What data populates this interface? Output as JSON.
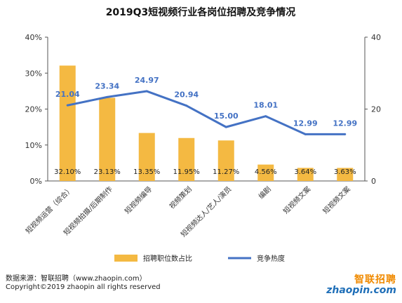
{
  "chart_data": {
    "type": "bar",
    "title": "2019Q3短视频行业各岗位招聘及竞争情况",
    "categories": [
      "短视频运营（综合）",
      "短视频拍摄/后期制作",
      "短视频编导",
      "视频策划",
      "短视频达人/艺人/演员",
      "编剧",
      "短视频文案",
      "短视频文案"
    ],
    "series": [
      {
        "name": "招聘职位数占比",
        "axis": "left",
        "kind": "bar",
        "color": "#f4b942",
        "values": [
          32.1,
          23.13,
          13.35,
          11.95,
          11.27,
          4.56,
          3.64,
          3.63
        ],
        "labels": [
          "32.10%",
          "23.13%",
          "13.35%",
          "11.95%",
          "11.27%",
          "4.56%",
          "3.64%",
          "3.63%"
        ]
      },
      {
        "name": "竞争热度",
        "axis": "right",
        "kind": "line",
        "color": "#4472c4",
        "values": [
          21.04,
          23.34,
          24.97,
          20.94,
          15.0,
          18.01,
          12.99,
          12.99
        ],
        "labels": [
          "21.04",
          "23.34",
          "24.97",
          "20.94",
          "15.00",
          "18.01",
          "12.99",
          "12.99"
        ]
      }
    ],
    "y_left": {
      "ylim": [
        0,
        40
      ],
      "ticks": [
        "0%",
        "10%",
        "20%",
        "30%",
        "40%"
      ]
    },
    "y_right": {
      "ylim": [
        0,
        40
      ],
      "ticks": [
        "0",
        "20",
        "40"
      ]
    },
    "grid": false,
    "legend_position": "bottom"
  },
  "footer": {
    "source": "数据来源：智联招聘（www.zhaopin.com）",
    "copyright": "Copyright©2019 zhaopin all rights reserved"
  },
  "logo": {
    "cn": "智联招聘",
    "en": "zhaopin.com"
  }
}
